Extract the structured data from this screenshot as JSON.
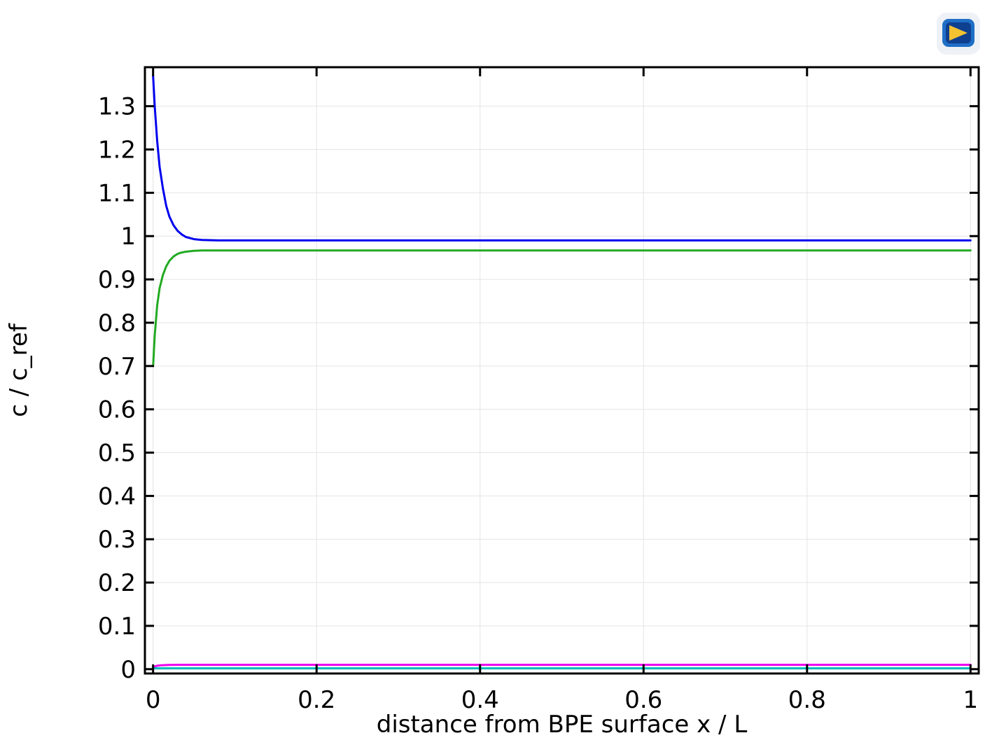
{
  "app": {
    "logo_icon": "comsol-logo-icon"
  },
  "chart_data": {
    "type": "line",
    "title": "",
    "xlabel": "distance from BPE surface x / L",
    "ylabel": "c / c_ref",
    "xlim": [
      -0.01,
      1.01
    ],
    "ylim": [
      -0.01,
      1.39
    ],
    "xticks": [
      0,
      0.2,
      0.4,
      0.6,
      0.8,
      1
    ],
    "xtick_labels": [
      "0",
      "0.2",
      "0.4",
      "0.6",
      "0.8",
      "1"
    ],
    "yticks": [
      0,
      0.1,
      0.2,
      0.3,
      0.4,
      0.5,
      0.6,
      0.7,
      0.8,
      0.9,
      1,
      1.1,
      1.2,
      1.3
    ],
    "ytick_labels": [
      "0",
      "0.1",
      "0.2",
      "0.3",
      "0.4",
      "0.5",
      "0.6",
      "0.7",
      "0.8",
      "0.9",
      "1",
      "1.1",
      "1.2",
      "1.3"
    ],
    "grid": true,
    "legend": "none",
    "series": [
      {
        "color": "#0000ee",
        "x": [
          0,
          0.002,
          0.005,
          0.008,
          0.012,
          0.016,
          0.02,
          0.025,
          0.03,
          0.035,
          0.04,
          0.05,
          0.06,
          0.08,
          0.1,
          0.2,
          0.4,
          0.6,
          0.8,
          1.0
        ],
        "y": [
          1.37,
          1.3,
          1.22,
          1.16,
          1.11,
          1.07,
          1.045,
          1.025,
          1.012,
          1.004,
          0.998,
          0.993,
          0.991,
          0.99,
          0.99,
          0.99,
          0.99,
          0.99,
          0.99,
          0.99
        ]
      },
      {
        "color": "#22aa22",
        "x": [
          0,
          0.002,
          0.005,
          0.008,
          0.012,
          0.016,
          0.02,
          0.025,
          0.03,
          0.035,
          0.04,
          0.05,
          0.06,
          0.08,
          0.1,
          0.2,
          0.4,
          0.6,
          0.8,
          1.0
        ],
        "y": [
          0.7,
          0.77,
          0.84,
          0.88,
          0.91,
          0.93,
          0.943,
          0.953,
          0.959,
          0.962,
          0.964,
          0.966,
          0.967,
          0.967,
          0.967,
          0.967,
          0.967,
          0.967,
          0.967,
          0.967
        ]
      },
      {
        "color": "#ee00ee",
        "x": [
          0,
          0.005,
          0.01,
          0.02,
          0.03,
          0.05,
          0.1,
          0.2,
          0.4,
          0.6,
          0.8,
          1.0
        ],
        "y": [
          0.005,
          0.008,
          0.009,
          0.0098,
          0.01,
          0.01,
          0.01,
          0.01,
          0.01,
          0.01,
          0.01,
          0.01
        ]
      },
      {
        "color": "#00bbbb",
        "x": [
          0,
          0.2,
          0.4,
          0.6,
          0.8,
          1.0
        ],
        "y": [
          0.002,
          0.002,
          0.002,
          0.002,
          0.002,
          0.002
        ]
      }
    ]
  }
}
